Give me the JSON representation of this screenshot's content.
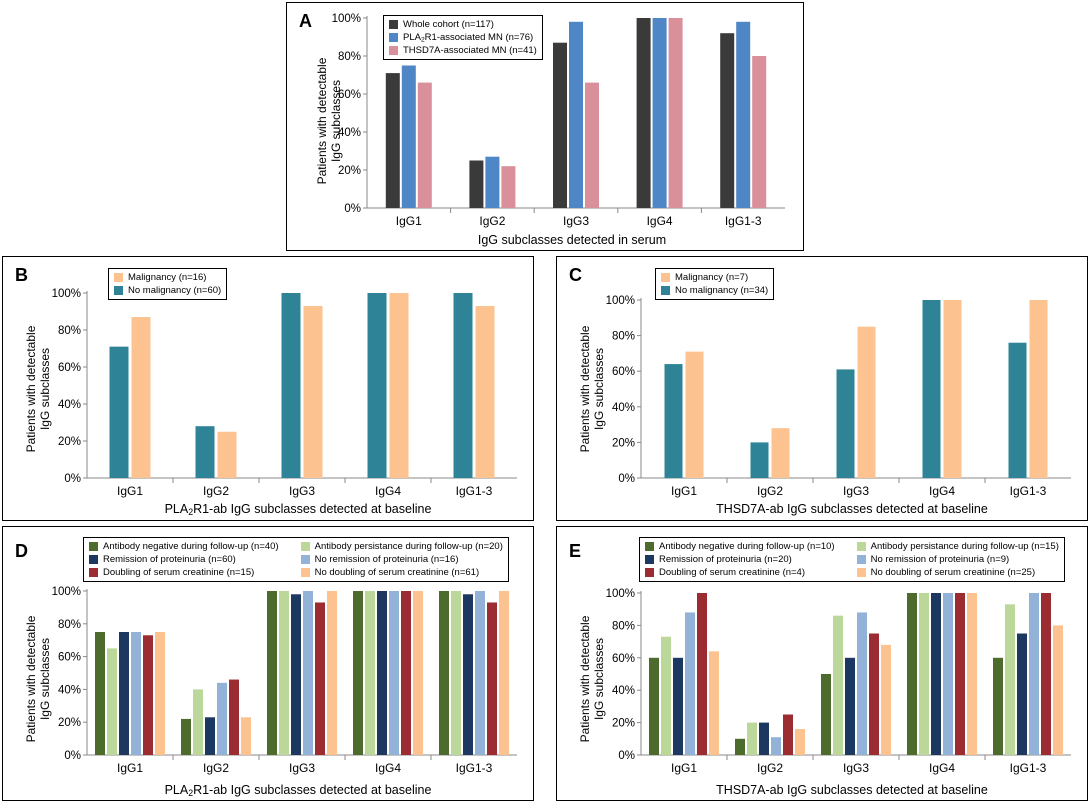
{
  "chart_data": [
    {
      "id": "A",
      "type": "bar",
      "panel_label": "A",
      "categories": [
        "IgG1",
        "IgG2",
        "IgG3",
        "IgG4",
        "IgG1-3"
      ],
      "series": [
        {
          "name": "Whole cohort (n=117)",
          "color": "#3a3a3a",
          "values": [
            71,
            25,
            87,
            100,
            92
          ]
        },
        {
          "name_pre": "PLA",
          "name_sub": "2",
          "name_post": "R1-associated MN (n=76)",
          "name": "PLA2R1-associated MN (n=76)",
          "color": "#4f86c6",
          "values": [
            75,
            27,
            98,
            100,
            98
          ]
        },
        {
          "name": "THSD7A-associated MN (n=41)",
          "color": "#d9909a",
          "values": [
            66,
            22,
            66,
            100,
            80
          ]
        }
      ],
      "yticks": [
        "0%",
        "20%",
        "40%",
        "60%",
        "80%",
        "100%"
      ],
      "ylim": [
        0,
        100
      ],
      "ylabel_line1": "Patients with detectable",
      "ylabel_line2": "IgG subclasses",
      "xlabel": "IgG subclasses detected in serum",
      "legend_position": "top-left"
    },
    {
      "id": "B",
      "type": "bar",
      "panel_label": "B",
      "categories": [
        "IgG1",
        "IgG2",
        "IgG3",
        "IgG4",
        "IgG1-3"
      ],
      "series": [
        {
          "name": "No malignancy (n=60)",
          "color": "#2e8496",
          "values": [
            71,
            28,
            100,
            100,
            100
          ]
        },
        {
          "name": "Malignancy (n=16)",
          "color": "#fcc290",
          "values": [
            87,
            25,
            93,
            100,
            93
          ]
        }
      ],
      "legend_order": [
        1,
        0
      ],
      "yticks": [
        "0%",
        "20%",
        "40%",
        "60%",
        "80%",
        "100%"
      ],
      "ylim": [
        0,
        100
      ],
      "ylabel_line1": "Patients with detectable",
      "ylabel_line2": "IgG subclasses",
      "xlabel_pre": "PLA",
      "xlabel_sub": "2",
      "xlabel_post": "R1-ab IgG subclasses detected at baseline",
      "xlabel": "PLA2R1-ab IgG subclasses detected at baseline",
      "legend_position": "top-left"
    },
    {
      "id": "C",
      "type": "bar",
      "panel_label": "C",
      "categories": [
        "IgG1",
        "IgG2",
        "IgG3",
        "IgG4",
        "IgG1-3"
      ],
      "series": [
        {
          "name": "No malignancy (n=34)",
          "color": "#2e8496",
          "values": [
            64,
            20,
            61,
            100,
            76
          ]
        },
        {
          "name": "Malignancy (n=7)",
          "color": "#fcc290",
          "values": [
            71,
            28,
            85,
            100,
            100
          ]
        }
      ],
      "legend_order": [
        1,
        0
      ],
      "yticks": [
        "0%",
        "20%",
        "40%",
        "60%",
        "80%",
        "100%"
      ],
      "ylim": [
        0,
        100
      ],
      "ylabel_line1": "Patients with detectable",
      "ylabel_line2": "IgG subclasses",
      "xlabel": "THSD7A-ab IgG subclasses detected at baseline",
      "legend_position": "top-left"
    },
    {
      "id": "D",
      "type": "bar",
      "panel_label": "D",
      "categories": [
        "IgG1",
        "IgG2",
        "IgG3",
        "IgG4",
        "IgG1-3"
      ],
      "series": [
        {
          "name": "Antibody negative during follow-up (n=40)",
          "color": "#4c6b2c",
          "values": [
            75,
            22,
            100,
            100,
            100
          ]
        },
        {
          "name": "Antibody persistance during follow-up (n=20)",
          "color": "#bcd79a",
          "values": [
            65,
            40,
            100,
            100,
            100
          ]
        },
        {
          "name": "Remission of proteinuria (n=60)",
          "color": "#1c3760",
          "values": [
            75,
            23,
            98,
            100,
            98
          ]
        },
        {
          "name": "No remission of proteinuria (n=16)",
          "color": "#93b2d8",
          "values": [
            75,
            44,
            100,
            100,
            100
          ]
        },
        {
          "name": "Doubling of serum creatinine (n=15)",
          "color": "#9b2c32",
          "values": [
            73,
            46,
            93,
            100,
            93
          ]
        },
        {
          "name": "No doubling of serum creatinine (n=61)",
          "color": "#fcc290",
          "values": [
            75,
            23,
            100,
            100,
            100
          ]
        }
      ],
      "legend_order": [
        0,
        1,
        2,
        3,
        4,
        5
      ],
      "yticks": [
        "0%",
        "20%",
        "40%",
        "60%",
        "80%",
        "100%"
      ],
      "ylim": [
        0,
        100
      ],
      "ylabel_line1": "Patients with detectable",
      "ylabel_line2": "IgG subclasses",
      "xlabel_pre": "PLA",
      "xlabel_sub": "2",
      "xlabel_post": "R1-ab IgG subclasses detected at baseline",
      "xlabel": "PLA2R1-ab IgG subclasses detected at baseline",
      "legend_position": "top"
    },
    {
      "id": "E",
      "type": "bar",
      "panel_label": "E",
      "categories": [
        "IgG1",
        "IgG2",
        "IgG3",
        "IgG4",
        "IgG1-3"
      ],
      "series": [
        {
          "name": "Antibody negative during follow-up (n=10)",
          "color": "#4c6b2c",
          "values": [
            60,
            10,
            50,
            100,
            60
          ]
        },
        {
          "name": "Antibody persistance during follow-up (n=15)",
          "color": "#bcd79a",
          "values": [
            73,
            20,
            86,
            100,
            93
          ]
        },
        {
          "name": "Remission of proteinuria (n=20)",
          "color": "#1c3760",
          "values": [
            60,
            20,
            60,
            100,
            75
          ]
        },
        {
          "name": "No remission of proteinuria (n=9)",
          "color": "#93b2d8",
          "values": [
            88,
            11,
            88,
            100,
            100
          ]
        },
        {
          "name": "Doubling of serum creatinine (n=4)",
          "color": "#9b2c32",
          "values": [
            100,
            25,
            75,
            100,
            100
          ]
        },
        {
          "name": "No doubling of serum creatinine (n=25)",
          "color": "#fcc290",
          "values": [
            64,
            16,
            68,
            100,
            80
          ]
        }
      ],
      "legend_order": [
        0,
        1,
        2,
        3,
        4,
        5
      ],
      "yticks": [
        "0%",
        "20%",
        "40%",
        "60%",
        "80%",
        "100%"
      ],
      "ylim": [
        0,
        100
      ],
      "ylabel_line1": "Patients with detectable",
      "ylabel_line2": "IgG subclasses",
      "xlabel": "THSD7A-ab IgG subclasses detected at baseline",
      "legend_position": "top"
    }
  ]
}
